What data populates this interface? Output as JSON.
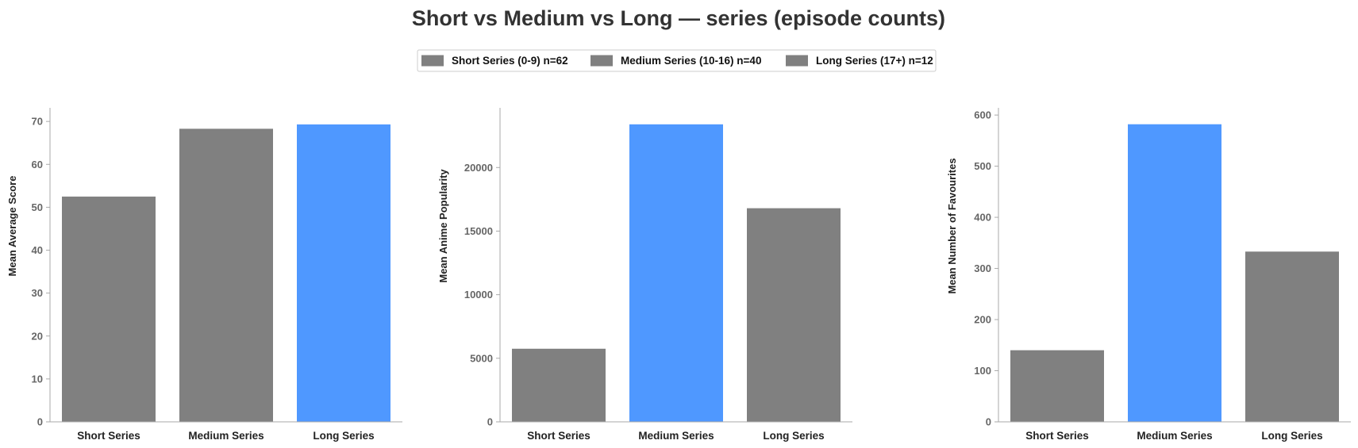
{
  "figure": {
    "title": "Short vs Medium vs Long — series (episode counts)"
  },
  "legend": {
    "items": [
      {
        "label": "Short Series (0-9) n=62",
        "color": "#808080"
      },
      {
        "label": "Medium Series (10-16) n=40",
        "color": "#808080"
      },
      {
        "label": "Long Series (17+) n=12",
        "color": "#808080"
      }
    ]
  },
  "chart_data": [
    {
      "type": "bar",
      "categories": [
        "Short Series",
        "Medium Series",
        "Long Series"
      ],
      "values": [
        52.5,
        68.3,
        69.3
      ],
      "colors": [
        "#808080",
        "#808080",
        "#4f98ff"
      ],
      "ylabel": "Mean Average Score",
      "ylim": [
        0,
        72.8
      ],
      "yticks": [
        0,
        10,
        20,
        30,
        40,
        50,
        60,
        70
      ],
      "grid": false
    },
    {
      "type": "bar",
      "categories": [
        "Short Series",
        "Medium Series",
        "Long Series"
      ],
      "values": [
        5750,
        23400,
        16800
      ],
      "colors": [
        "#808080",
        "#4f98ff",
        "#808080"
      ],
      "ylabel": "Mean Anime Popularity",
      "ylim": [
        0,
        24570
      ],
      "yticks": [
        0,
        5000,
        10000,
        15000,
        20000
      ],
      "grid": false
    },
    {
      "type": "bar",
      "categories": [
        "Short Series",
        "Medium Series",
        "Long Series"
      ],
      "values": [
        140,
        582,
        333
      ],
      "colors": [
        "#808080",
        "#4f98ff",
        "#808080"
      ],
      "ylabel": "Mean Number of Favourites",
      "ylim": [
        0,
        611
      ],
      "yticks": [
        0,
        100,
        200,
        300,
        400,
        500,
        600
      ],
      "grid": false
    }
  ]
}
